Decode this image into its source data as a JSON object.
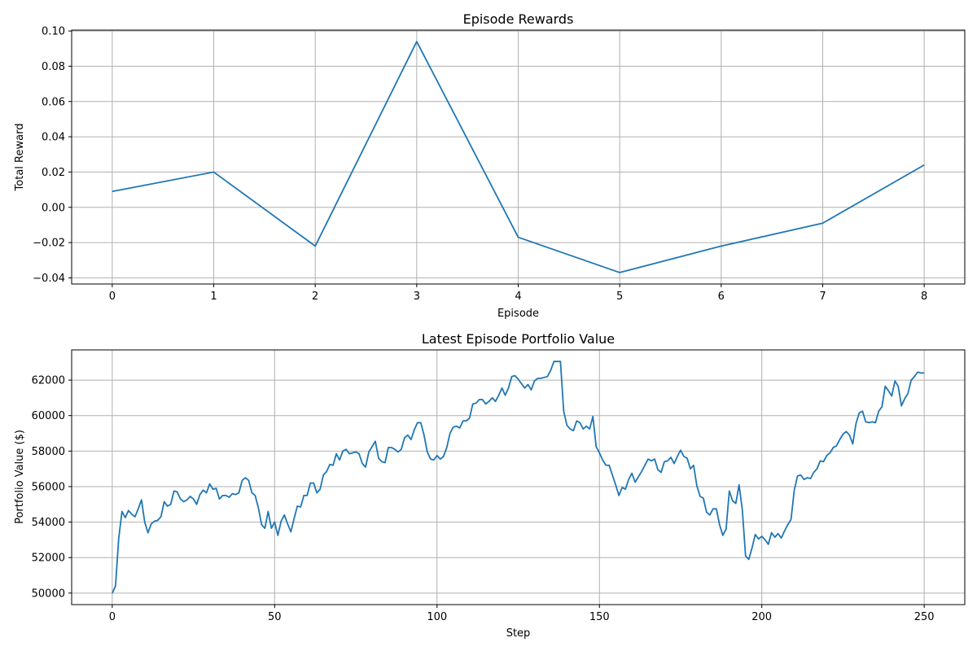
{
  "chart_data": [
    {
      "type": "line",
      "title": "Episode Rewards",
      "xlabel": "Episode",
      "ylabel": "Total Reward",
      "xlim": [
        -0.4,
        8.4
      ],
      "ylim": [
        -0.0435,
        0.1005
      ],
      "grid": true,
      "color": "#1f77b4",
      "xticks": [
        0,
        1,
        2,
        3,
        4,
        5,
        6,
        7,
        8
      ],
      "xtick_labels": [
        "0",
        "1",
        "2",
        "3",
        "4",
        "5",
        "6",
        "7",
        "8"
      ],
      "yticks": [
        -0.04,
        -0.02,
        0.0,
        0.02,
        0.04,
        0.06,
        0.08,
        0.1
      ],
      "ytick_labels": [
        "−0.04",
        "−0.02",
        "0.00",
        "0.02",
        "0.04",
        "0.06",
        "0.08",
        "0.10"
      ],
      "x": [
        0,
        1,
        2,
        3,
        4,
        5,
        6,
        7,
        8
      ],
      "y": [
        0.009,
        0.02,
        -0.022,
        0.094,
        -0.017,
        -0.037,
        -0.022,
        -0.009,
        0.024
      ]
    },
    {
      "type": "line",
      "title": "Latest Episode Portfolio Value",
      "xlabel": "Step",
      "ylabel": "Portfolio Value ($)",
      "xlim": [
        -12.5,
        262.5
      ],
      "ylim": [
        49350,
        63700
      ],
      "grid": true,
      "color": "#1f77b4",
      "xticks": [
        0,
        50,
        100,
        150,
        200,
        250
      ],
      "xtick_labels": [
        "0",
        "50",
        "100",
        "150",
        "200",
        "250"
      ],
      "yticks": [
        50000,
        52000,
        54000,
        56000,
        58000,
        60000,
        62000
      ],
      "ytick_labels": [
        "50000",
        "52000",
        "54000",
        "56000",
        "58000",
        "60000",
        "62000"
      ],
      "x_start": 0,
      "x_step": 1,
      "y": [
        50000,
        50400,
        53100,
        54600,
        54250,
        54650,
        54450,
        54300,
        54750,
        55250,
        54000,
        53400,
        53900,
        54050,
        54100,
        54300,
        55150,
        54900,
        55000,
        55750,
        55700,
        55300,
        55150,
        55250,
        55450,
        55300,
        55000,
        55550,
        55800,
        55650,
        56150,
        55850,
        55900,
        55300,
        55500,
        55500,
        55400,
        55600,
        55550,
        55650,
        56350,
        56500,
        56350,
        55650,
        55500,
        54800,
        53850,
        53650,
        54600,
        53650,
        54000,
        53250,
        54050,
        54400,
        53900,
        53450,
        54200,
        54900,
        54850,
        55500,
        55500,
        56200,
        56200,
        55650,
        55850,
        56650,
        56850,
        57250,
        57200,
        57850,
        57500,
        58000,
        58100,
        57850,
        57900,
        57950,
        57850,
        57300,
        57100,
        57950,
        58250,
        58550,
        57600,
        57400,
        57350,
        58200,
        58200,
        58100,
        57950,
        58100,
        58750,
        58900,
        58650,
        59200,
        59600,
        59600,
        58900,
        57950,
        57550,
        57500,
        57750,
        57550,
        57700,
        58200,
        59000,
        59350,
        59400,
        59300,
        59700,
        59700,
        59850,
        60650,
        60700,
        60900,
        60900,
        60650,
        60800,
        61000,
        60800,
        61150,
        61550,
        61150,
        61550,
        62200,
        62250,
        62050,
        61800,
        61550,
        61750,
        61450,
        61950,
        62100,
        62100,
        62150,
        62200,
        62550,
        63050,
        63050,
        63050,
        60250,
        59450,
        59250,
        59150,
        59700,
        59600,
        59250,
        59400,
        59250,
        59950,
        58250,
        57900,
        57500,
        57200,
        57200,
        56650,
        56100,
        55500,
        55950,
        55850,
        56400,
        56750,
        56250,
        56550,
        56850,
        57200,
        57550,
        57450,
        57550,
        56950,
        56800,
        57400,
        57450,
        57650,
        57300,
        57700,
        58050,
        57700,
        57600,
        57000,
        57200,
        56050,
        55450,
        55350,
        54550,
        54400,
        54750,
        54750,
        53850,
        53250,
        53600,
        55750,
        55200,
        55050,
        56100,
        54700,
        52100,
        51900,
        52550,
        53300,
        53050,
        53200,
        53000,
        52750,
        53400,
        53150,
        53350,
        53100,
        53500,
        53850,
        54150,
        55800,
        56600,
        56650,
        56400,
        56500,
        56450,
        56800,
        57000,
        57450,
        57400,
        57750,
        57900,
        58200,
        58300,
        58650,
        58950,
        59100,
        58900,
        58400,
        59550,
        60150,
        60250,
        59650,
        59600,
        59650,
        59600,
        60250,
        60500,
        61650,
        61400,
        61100,
        61950,
        61650,
        60550,
        60950,
        61250,
        62000,
        62200,
        62450,
        62400,
        62400
      ]
    }
  ]
}
